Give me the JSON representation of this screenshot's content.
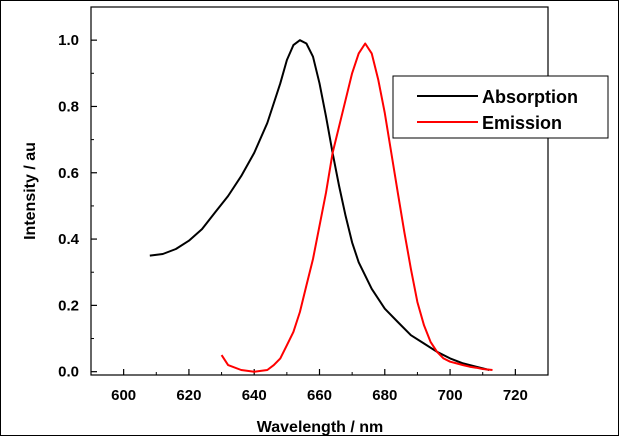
{
  "chart_data": {
    "type": "line",
    "title": "",
    "xlabel": "Wavelength / nm",
    "ylabel": "Intensity / au",
    "xlim": [
      590,
      730
    ],
    "ylim": [
      -0.01,
      1.1
    ],
    "xticks": [
      600,
      620,
      640,
      660,
      680,
      700,
      720
    ],
    "yticks": [
      0.0,
      0.2,
      0.4,
      0.6,
      0.8,
      1.0
    ],
    "xtick_labels": [
      "600",
      "620",
      "640",
      "660",
      "680",
      "700",
      "720"
    ],
    "ytick_labels": [
      "0.0",
      "0.2",
      "0.4",
      "0.6",
      "0.8",
      "1.0"
    ],
    "grid": false,
    "legend_position": "top-right",
    "series": [
      {
        "name": "Absorption",
        "color": "#000000",
        "x": [
          608,
          612,
          616,
          620,
          624,
          628,
          632,
          636,
          640,
          644,
          648,
          650,
          652,
          654,
          656,
          658,
          660,
          662,
          664,
          666,
          668,
          670,
          672,
          676,
          680,
          684,
          688,
          692,
          696,
          700,
          704,
          708,
          712
        ],
        "y": [
          0.35,
          0.355,
          0.37,
          0.395,
          0.43,
          0.48,
          0.53,
          0.59,
          0.66,
          0.75,
          0.87,
          0.94,
          0.985,
          1.0,
          0.99,
          0.95,
          0.87,
          0.77,
          0.66,
          0.56,
          0.47,
          0.39,
          0.33,
          0.25,
          0.19,
          0.15,
          0.11,
          0.085,
          0.06,
          0.04,
          0.025,
          0.015,
          0.005
        ]
      },
      {
        "name": "Emission",
        "color": "#ff0000",
        "x": [
          630,
          632,
          636,
          640,
          644,
          646,
          648,
          650,
          652,
          654,
          656,
          658,
          660,
          662,
          664,
          666,
          668,
          670,
          672,
          674,
          676,
          678,
          680,
          682,
          684,
          686,
          688,
          690,
          692,
          694,
          696,
          698,
          700,
          702,
          704,
          706,
          708,
          710,
          713
        ],
        "y": [
          0.05,
          0.02,
          0.005,
          0.0,
          0.005,
          0.02,
          0.04,
          0.08,
          0.12,
          0.18,
          0.26,
          0.34,
          0.44,
          0.54,
          0.66,
          0.74,
          0.82,
          0.9,
          0.96,
          0.99,
          0.96,
          0.88,
          0.78,
          0.66,
          0.54,
          0.42,
          0.31,
          0.21,
          0.14,
          0.09,
          0.06,
          0.04,
          0.03,
          0.025,
          0.02,
          0.015,
          0.012,
          0.008,
          0.005
        ]
      }
    ]
  }
}
